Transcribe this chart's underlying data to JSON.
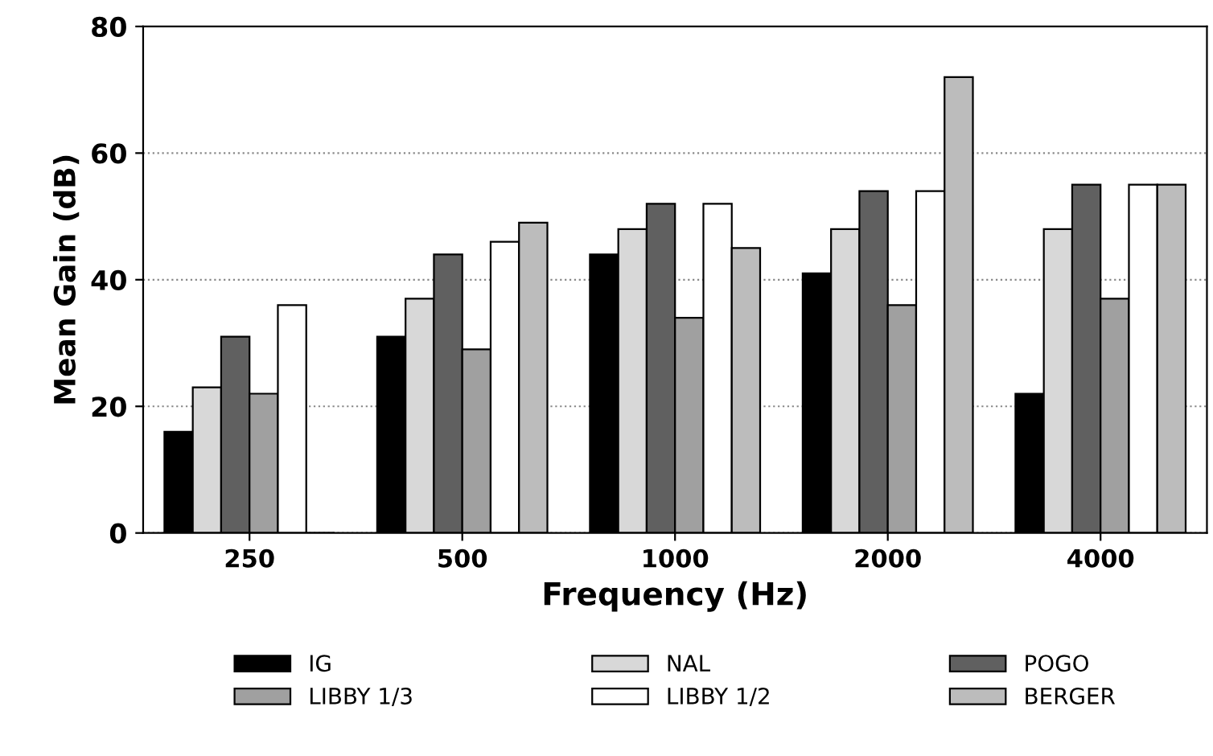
{
  "chart_data": {
    "type": "bar",
    "xlabel": "Frequency (Hz)",
    "ylabel": "Mean Gain (dB)",
    "categories": [
      "250",
      "500",
      "1000",
      "2000",
      "4000"
    ],
    "series": [
      {
        "name": "IG",
        "color": "#000000",
        "values": [
          16,
          31,
          44,
          41,
          22
        ]
      },
      {
        "name": "NAL",
        "color": "#d8d8d8",
        "values": [
          23,
          37,
          48,
          48,
          48
        ]
      },
      {
        "name": "POGO",
        "color": "#606060",
        "values": [
          31,
          44,
          52,
          54,
          55
        ]
      },
      {
        "name": "LIBBY 1/3",
        "color": "#a0a0a0",
        "values": [
          22,
          29,
          34,
          36,
          37
        ]
      },
      {
        "name": "LIBBY 1/2",
        "color": "#ffffff",
        "values": [
          36,
          46,
          52,
          54,
          55
        ]
      },
      {
        "name": "BERGER",
        "color": "#bcbcbc",
        "values": [
          0,
          49,
          45,
          72,
          55
        ]
      }
    ],
    "ylim": [
      0,
      80
    ],
    "yticks": [
      0,
      20,
      40,
      60,
      80
    ],
    "grid": "y",
    "legend": "bottom"
  }
}
